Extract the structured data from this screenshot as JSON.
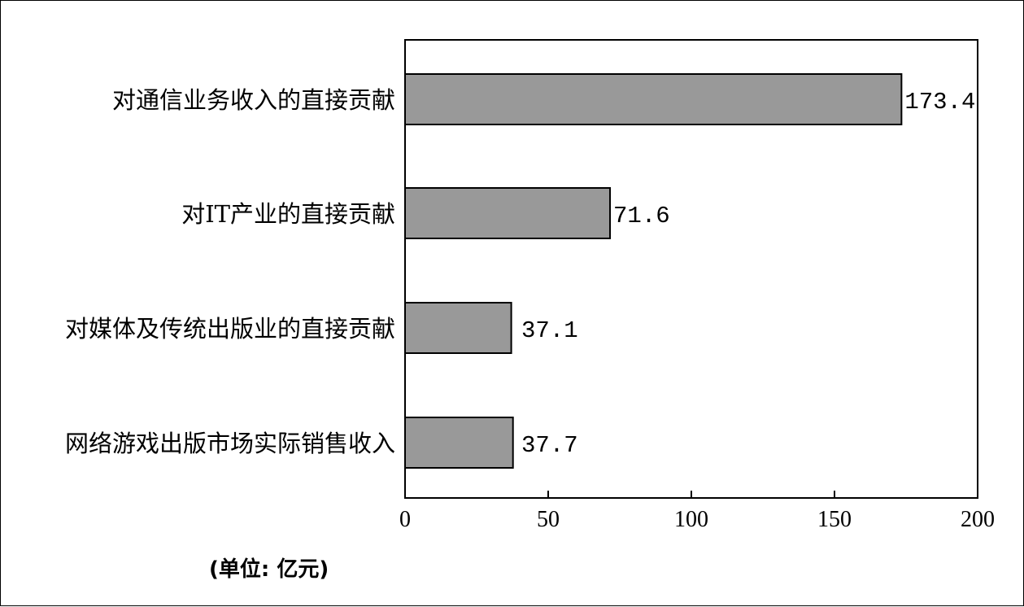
{
  "chart_data": {
    "type": "bar",
    "orientation": "horizontal",
    "categories": [
      "对通信业务收入的直接贡献",
      "对IT产业的直接贡献",
      "对媒体及传统出版业的直接贡献",
      "网络游戏出版市场实际销售收入"
    ],
    "values": [
      173.4,
      71.6,
      37.1,
      37.7
    ],
    "value_labels": [
      "173.4",
      "71.6",
      "37.1",
      "37.7"
    ],
    "xlim": [
      0,
      200
    ],
    "xticks": [
      0,
      50,
      100,
      150,
      200
    ],
    "xtick_labels": [
      "0",
      "50",
      "100",
      "150",
      "200"
    ],
    "unit_note": "(单位: 亿元)",
    "grid": false,
    "bar_color": "#999999",
    "edge_color": "#000000"
  }
}
